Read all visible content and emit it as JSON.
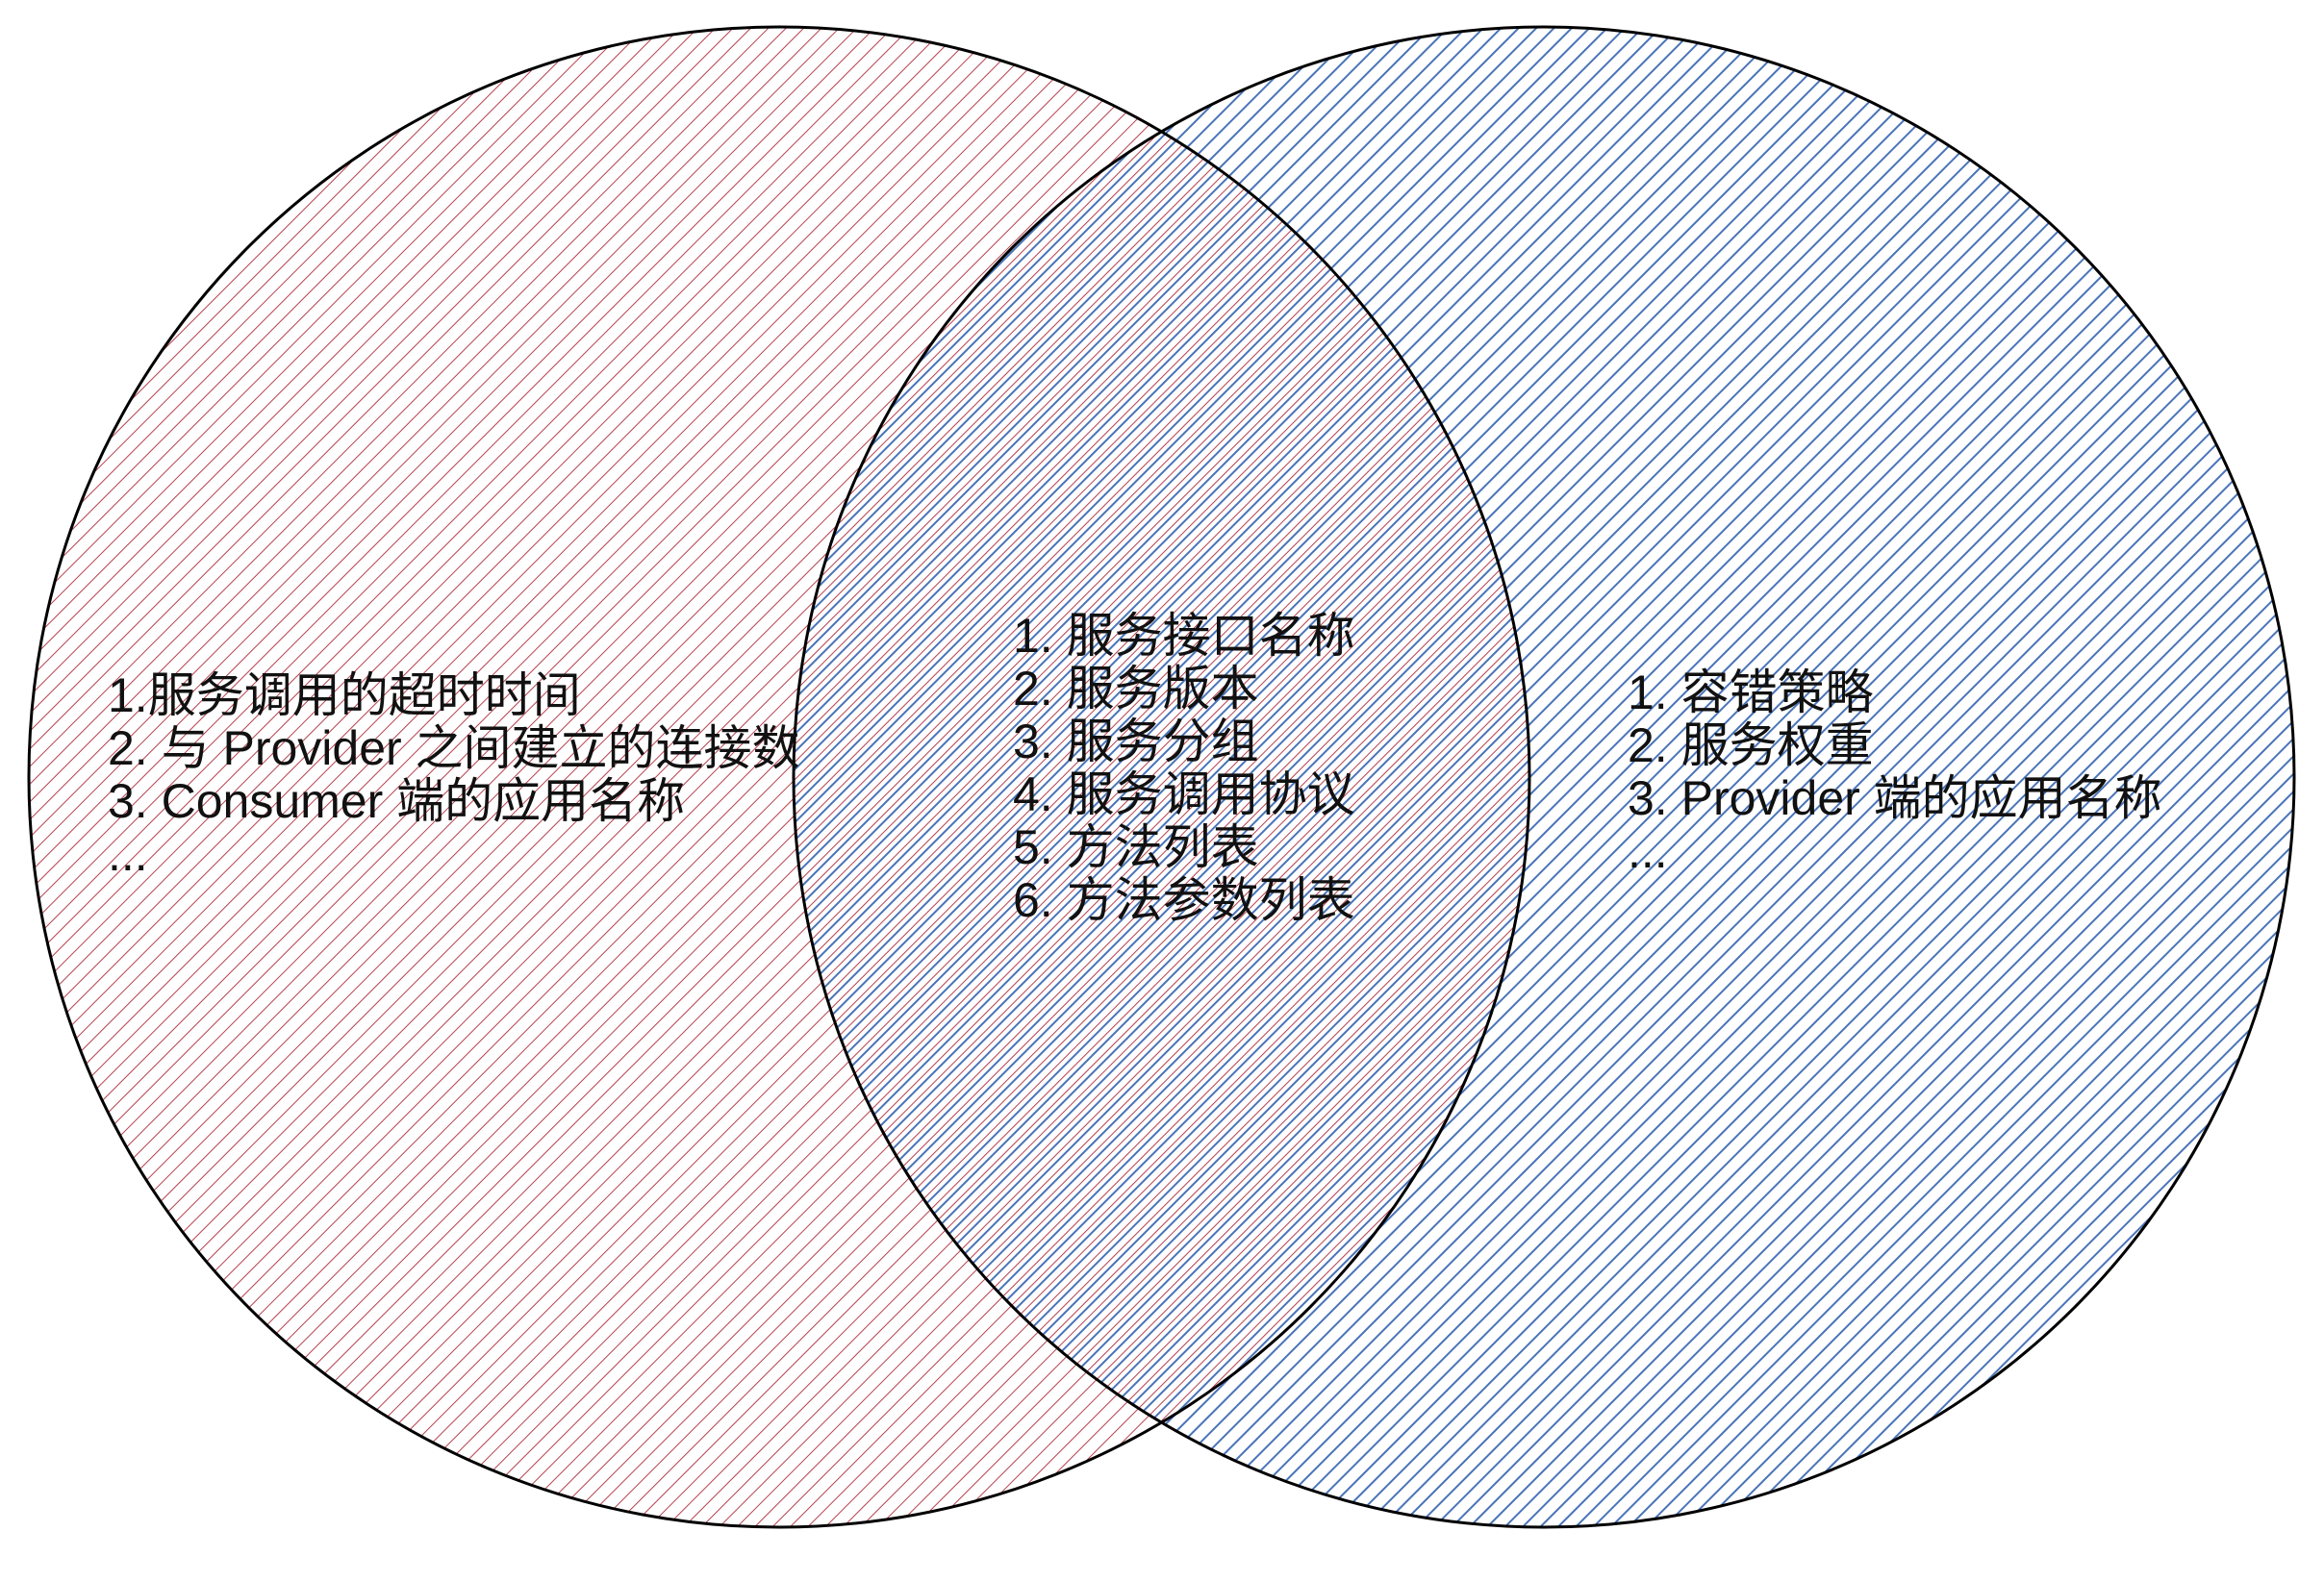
{
  "colors": {
    "outline": "#000000",
    "left_hatch": "#b5414f",
    "right_hatch": "#4a74b8",
    "text": "#111111"
  },
  "left_set": {
    "items": [
      "1.服务调用的超时时间",
      "2. 与 Provider 之间建立的连接数",
      "3. Consumer 端的应用名称",
      "..."
    ]
  },
  "intersection": {
    "items": [
      "1. 服务接口名称",
      "2. 服务版本",
      "3. 服务分组",
      "4. 服务调用协议",
      "5. 方法列表",
      "6. 方法参数列表"
    ]
  },
  "right_set": {
    "items": [
      "1. 容错策略",
      "2. 服务权重",
      "3. Provider 端的应用名称",
      "..."
    ]
  }
}
